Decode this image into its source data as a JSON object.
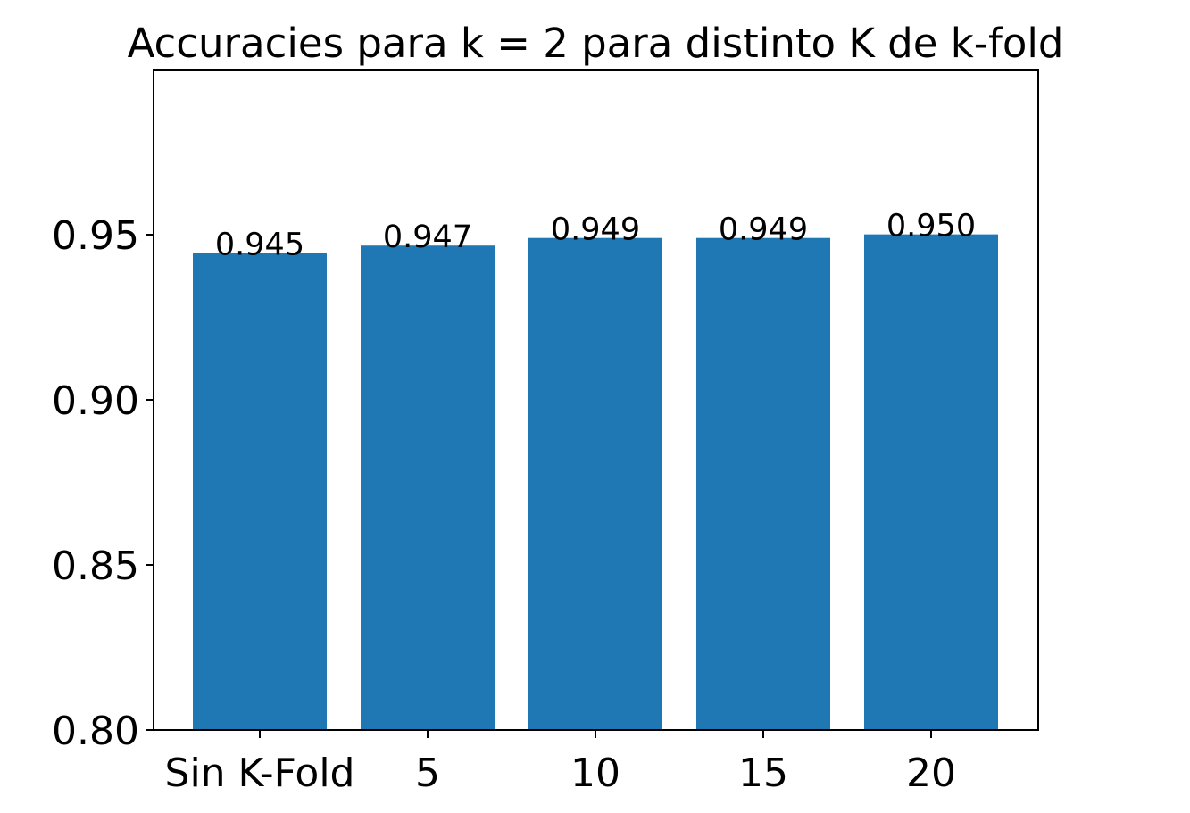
{
  "chart_data": {
    "type": "bar",
    "title": "Accuracies para k = 2 para distinto K de k-fold",
    "xlabel": "",
    "ylabel": "",
    "categories": [
      "Sin K-Fold",
      "5",
      "10",
      "15",
      "20"
    ],
    "values": [
      0.9445,
      0.9467,
      0.949,
      0.949,
      0.9501
    ],
    "value_labels": [
      "0.945",
      "0.947",
      "0.949",
      "0.949",
      "0.950"
    ],
    "ylim": [
      0.8,
      1.0
    ],
    "yticks": [
      0.8,
      0.85,
      0.9,
      0.95
    ],
    "ytick_labels": [
      "0.80",
      "0.85",
      "0.90",
      "0.95"
    ],
    "bar_color": "#1f77b4",
    "grid": false,
    "legend": "none"
  }
}
